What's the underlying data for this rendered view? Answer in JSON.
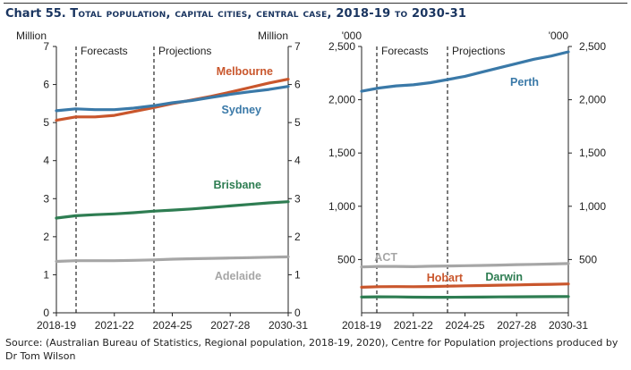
{
  "chart_number": "Chart 55.",
  "title": "Total population, capital cities, central case, 2018-19 to 2030-31",
  "source": "Source: (Australian Bureau of Statistics, Regional population, 2018-19, 2020), Centre for Population projections produced by Dr Tom Wilson",
  "chart_data": [
    {
      "type": "line",
      "left_unit": "Million",
      "right_unit": "Million",
      "ylim": [
        0,
        7
      ],
      "yticks": [
        "0",
        "1",
        "2",
        "3",
        "4",
        "5",
        "6",
        "7"
      ],
      "x": [
        "2018-19",
        "2019-20",
        "2020-21",
        "2021-22",
        "2022-23",
        "2023-24",
        "2024-25",
        "2025-26",
        "2026-27",
        "2027-28",
        "2028-29",
        "2029-30",
        "2030-31"
      ],
      "xtick_labels": [
        "2018-19",
        "2021-22",
        "2024-25",
        "2027-28",
        "2030-31"
      ],
      "phases": [
        "Forecasts",
        "Projections"
      ],
      "series": [
        {
          "name": "Melbourne",
          "color": "#c9562c",
          "values": [
            5.06,
            5.15,
            5.15,
            5.19,
            5.29,
            5.39,
            5.5,
            5.59,
            5.69,
            5.8,
            5.92,
            6.04,
            6.14
          ]
        },
        {
          "name": "Sydney",
          "color": "#3a79a8",
          "values": [
            5.31,
            5.36,
            5.34,
            5.34,
            5.38,
            5.44,
            5.52,
            5.58,
            5.66,
            5.74,
            5.81,
            5.87,
            5.95
          ]
        },
        {
          "name": "Brisbane",
          "color": "#2e7d52",
          "values": [
            2.49,
            2.55,
            2.58,
            2.6,
            2.63,
            2.67,
            2.7,
            2.73,
            2.77,
            2.81,
            2.85,
            2.89,
            2.92
          ]
        },
        {
          "name": "Adelaide",
          "color": "#a6a6a6",
          "values": [
            1.35,
            1.37,
            1.37,
            1.37,
            1.38,
            1.39,
            1.41,
            1.42,
            1.43,
            1.44,
            1.45,
            1.46,
            1.47
          ]
        }
      ]
    },
    {
      "type": "line",
      "left_unit": "'000",
      "right_unit": "'000",
      "ylim": [
        0,
        2500
      ],
      "yticks": [
        "500",
        "1,000",
        "1,500",
        "2,000",
        "2,500"
      ],
      "x": [
        "2018-19",
        "2019-20",
        "2020-21",
        "2021-22",
        "2022-23",
        "2023-24",
        "2024-25",
        "2025-26",
        "2026-27",
        "2027-28",
        "2028-29",
        "2029-30",
        "2030-31"
      ],
      "xtick_labels": [
        "2018-19",
        "2021-22",
        "2024-25",
        "2027-28",
        "2030-31"
      ],
      "phases": [
        "Forecasts",
        "Projections"
      ],
      "series": [
        {
          "name": "Perth",
          "color": "#3a79a8",
          "values": [
            2080,
            2110,
            2130,
            2140,
            2160,
            2190,
            2220,
            2260,
            2300,
            2340,
            2380,
            2410,
            2450
          ]
        },
        {
          "name": "ACT",
          "color": "#a6a6a6",
          "values": [
            430,
            435,
            435,
            433,
            437,
            440,
            442,
            445,
            448,
            452,
            455,
            458,
            462
          ]
        },
        {
          "name": "Hobart",
          "color": "#c9562c",
          "values": [
            240,
            245,
            246,
            245,
            247,
            250,
            253,
            256,
            259,
            262,
            265,
            268,
            271
          ]
        },
        {
          "name": "Darwin",
          "color": "#2e7d52",
          "values": [
            148,
            150,
            149,
            147,
            146,
            146,
            147,
            148,
            149,
            150,
            151,
            152,
            153
          ]
        }
      ]
    }
  ]
}
